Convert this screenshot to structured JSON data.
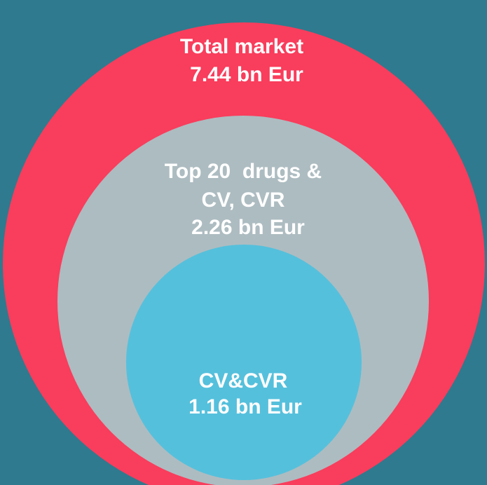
{
  "nodes": [
    {
      "lines": [
        "Total market",
        "7.44 bn Eur"
      ]
    },
    {
      "lines": [
        "Top 20  drugs &",
        "CV, CVR",
        "2.26 bn Eur"
      ]
    },
    {
      "lines": [
        "CV&CVR",
        "1.16 bn Eur"
      ]
    }
  ]
}
